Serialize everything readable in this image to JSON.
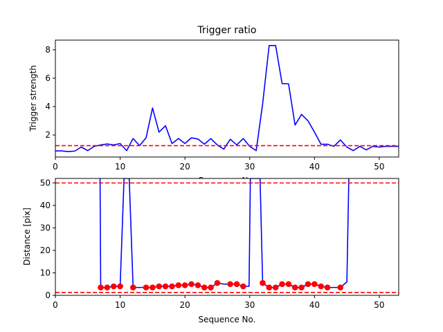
{
  "colors": {
    "line": "#0000ff",
    "threshold": "#ff0000",
    "marker": "#ff0000",
    "frame": "#000000"
  },
  "chart_data": [
    {
      "type": "line",
      "title": "Trigger ratio",
      "xlabel": "Sequence No.",
      "ylabel": "Trigger strength",
      "xlim": [
        0,
        53
      ],
      "ylim": [
        0.45,
        8.68
      ],
      "xticks": [
        0,
        10,
        20,
        30,
        40,
        50
      ],
      "yticks": [
        2,
        4,
        6,
        8
      ],
      "grid": false,
      "series": [
        {
          "style": "solid-line",
          "x": [
            0,
            1,
            2,
            3,
            4,
            5,
            6,
            7,
            8,
            9,
            10,
            11,
            12,
            13,
            14,
            15,
            16,
            17,
            18,
            19,
            20,
            21,
            22,
            23,
            24,
            25,
            26,
            27,
            28,
            29,
            30,
            31,
            32,
            33,
            34,
            35,
            36,
            37,
            38,
            39,
            40,
            41,
            42,
            43,
            44,
            45,
            46,
            47,
            48,
            49,
            50,
            51,
            52,
            53
          ],
          "y": [
            0.88,
            0.88,
            0.83,
            0.87,
            1.15,
            0.9,
            1.2,
            1.3,
            1.37,
            1.3,
            1.4,
            0.9,
            1.75,
            1.25,
            1.8,
            3.9,
            2.2,
            2.65,
            1.4,
            1.75,
            1.4,
            1.8,
            1.72,
            1.35,
            1.75,
            1.3,
            1.0,
            1.7,
            1.3,
            1.75,
            1.2,
            0.9,
            4.2,
            8.3,
            8.3,
            5.62,
            5.6,
            2.7,
            3.45,
            3.0,
            2.2,
            1.35,
            1.35,
            1.2,
            1.65,
            1.15,
            0.9,
            1.2,
            0.95,
            1.2,
            1.15,
            1.2,
            1.2,
            1.2
          ]
        }
      ],
      "hlines": [
        1.25
      ]
    },
    {
      "type": "line",
      "title": "",
      "xlabel": "Sequence No.",
      "ylabel": "Distance [pix]",
      "xlim": [
        0,
        53
      ],
      "ylim": [
        0,
        52
      ],
      "xticks": [
        0,
        10,
        20,
        30,
        40,
        50
      ],
      "yticks": [
        0,
        10,
        20,
        30,
        40,
        50
      ],
      "grid": false,
      "series": [
        {
          "style": "solid-line",
          "x": [
            6.9,
            7,
            8,
            9,
            10,
            10.6,
            11,
            11.4,
            12,
            13,
            14,
            15,
            16,
            17,
            18,
            19,
            20,
            21,
            22,
            23,
            24,
            25,
            26,
            27,
            28,
            29,
            29.9,
            30.1,
            31.6,
            32,
            33,
            34,
            35,
            36,
            37,
            38,
            39,
            40,
            41,
            42,
            43,
            44,
            45,
            45.3
          ],
          "y": [
            52,
            3.5,
            3.5,
            4.0,
            4.0,
            52,
            52,
            52,
            3.5,
            3.5,
            3.5,
            3.5,
            4.0,
            4.0,
            4.0,
            4.5,
            4.5,
            5.0,
            4.5,
            3.5,
            3.5,
            5.5,
            5.0,
            5.0,
            5.0,
            4.0,
            4.0,
            52,
            52,
            5.5,
            3.5,
            3.5,
            5.0,
            5.0,
            3.5,
            3.5,
            5.0,
            5.0,
            4.0,
            3.5,
            3.5,
            3.5,
            6.0,
            52
          ]
        },
        {
          "style": "markers",
          "x": [
            7,
            8,
            9,
            10,
            12,
            14,
            15,
            16,
            17,
            18,
            19,
            20,
            21,
            22,
            23,
            24,
            25,
            27,
            28,
            29,
            32,
            33,
            34,
            35,
            36,
            37,
            38,
            39,
            40,
            41,
            42,
            44
          ],
          "y": [
            3.5,
            3.5,
            4.0,
            4.0,
            3.5,
            3.5,
            3.5,
            4.0,
            4.0,
            4.0,
            4.5,
            4.5,
            5.0,
            4.5,
            3.5,
            3.5,
            5.5,
            5.0,
            5.0,
            4.0,
            5.5,
            3.5,
            3.5,
            5.0,
            5.0,
            3.5,
            3.5,
            5.0,
            5.0,
            4.0,
            3.5,
            3.5
          ]
        }
      ],
      "hlines": [
        50,
        1.3
      ]
    }
  ]
}
